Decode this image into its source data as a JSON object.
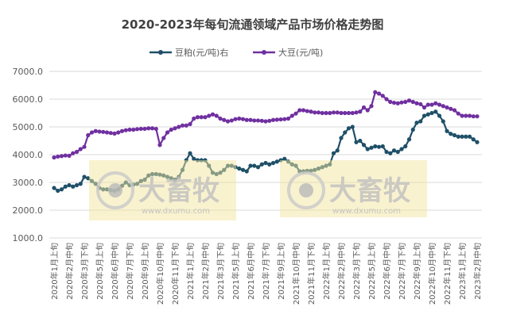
{
  "chart_data": {
    "type": "line",
    "title": "2020-2023年每旬流通领域产品市场价格走势图",
    "ylim": [
      1000,
      7000
    ],
    "y_ticks": [
      "1000.0",
      "2000.0",
      "3000.0",
      "4000.0",
      "5000.0",
      "6000.0",
      "7000.0"
    ],
    "grid": true,
    "legend_placement": "top",
    "x_tick_labels": [
      "2020年1月上旬",
      "2020年2月中旬",
      "2020年3月下旬",
      "2020年5月上旬",
      "2020年6月中旬",
      "2020年7月下旬",
      "2020年9月上旬",
      "2020年10月中旬",
      "2020年11月下旬",
      "2021年1月上旬",
      "2021年2月中旬",
      "2021年3月下旬",
      "2021年5月上旬",
      "2021年6月中旬",
      "2021年7月下旬",
      "2021年9月上旬",
      "2021年10月中旬",
      "2021年11月下旬",
      "2022年1月上旬",
      "2022年2月中旬",
      "2022年3月下旬",
      "2022年5月上旬",
      "2022年6月中旬",
      "2022年7月下旬",
      "2022年9月上旬",
      "2022年10月中旬",
      "2022年11月下旬",
      "2023年1月上旬",
      "2023年2月中旬"
    ],
    "series": [
      {
        "name": "豆粕(元/吨)右",
        "color": "#1f5068",
        "values": [
          2800,
          2700,
          2750,
          2850,
          2900,
          2850,
          2900,
          2950,
          3200,
          3150,
          3050,
          2950,
          2800,
          2750,
          2750,
          2720,
          2700,
          2750,
          2880,
          3000,
          2900,
          2920,
          2950,
          3050,
          3100,
          3250,
          3300,
          3300,
          3280,
          3250,
          3200,
          3150,
          3100,
          3200,
          3450,
          3800,
          4050,
          3850,
          3800,
          3800,
          3800,
          3600,
          3350,
          3300,
          3350,
          3450,
          3600,
          3600,
          3550,
          3500,
          3450,
          3400,
          3600,
          3600,
          3550,
          3650,
          3700,
          3650,
          3700,
          3750,
          3800,
          3850,
          3750,
          3650,
          3600,
          3400,
          3400,
          3420,
          3420,
          3450,
          3500,
          3550,
          3600,
          3650,
          4050,
          4150,
          4600,
          4800,
          4950,
          5000,
          4450,
          4500,
          4350,
          4200,
          4250,
          4300,
          4280,
          4300,
          4100,
          4050,
          4150,
          4100,
          4200,
          4300,
          4550,
          4900,
          5150,
          5200,
          5400,
          5450,
          5500,
          5550,
          5400,
          5200,
          4850,
          4750,
          4700,
          4650,
          4650,
          4650,
          4650,
          4550,
          4450
        ]
      },
      {
        "name": "大豆(元/吨)",
        "color": "#7030a0",
        "values": [
          3900,
          3930,
          3950,
          3970,
          3960,
          4050,
          4100,
          4200,
          4280,
          4700,
          4800,
          4850,
          4830,
          4820,
          4800,
          4780,
          4760,
          4800,
          4850,
          4880,
          4900,
          4900,
          4920,
          4930,
          4930,
          4950,
          4950,
          4930,
          4350,
          4600,
          4800,
          4900,
          4950,
          5000,
          5050,
          5050,
          5100,
          5300,
          5350,
          5350,
          5350,
          5400,
          5450,
          5400,
          5300,
          5250,
          5200,
          5230,
          5280,
          5300,
          5280,
          5250,
          5250,
          5230,
          5230,
          5220,
          5200,
          5220,
          5250,
          5260,
          5270,
          5280,
          5300,
          5400,
          5480,
          5600,
          5600,
          5570,
          5550,
          5520,
          5520,
          5500,
          5500,
          5500,
          5520,
          5520,
          5500,
          5500,
          5500,
          5500,
          5520,
          5550,
          5700,
          5600,
          5750,
          6250,
          6200,
          6120,
          6000,
          5900,
          5870,
          5850,
          5880,
          5900,
          5950,
          5900,
          5850,
          5820,
          5700,
          5800,
          5800,
          5850,
          5800,
          5750,
          5700,
          5650,
          5600,
          5480,
          5400,
          5400,
          5400,
          5380,
          5380
        ]
      }
    ],
    "watermark": {
      "text": "大畜牧",
      "url": "www.dxumu.com"
    }
  }
}
